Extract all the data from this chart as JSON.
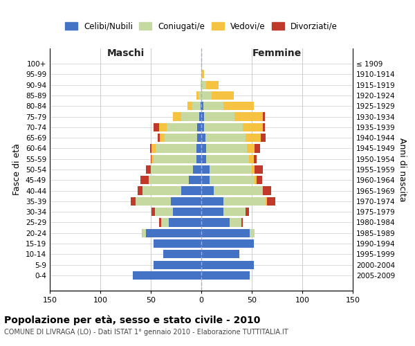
{
  "age_groups": [
    "0-4",
    "5-9",
    "10-14",
    "15-19",
    "20-24",
    "25-29",
    "30-34",
    "35-39",
    "40-44",
    "45-49",
    "50-54",
    "55-59",
    "60-64",
    "65-69",
    "70-74",
    "75-79",
    "80-84",
    "85-89",
    "90-94",
    "95-99",
    "100+"
  ],
  "birth_years": [
    "2005-2009",
    "2000-2004",
    "1995-1999",
    "1990-1994",
    "1985-1989",
    "1980-1984",
    "1975-1979",
    "1970-1974",
    "1965-1969",
    "1960-1964",
    "1955-1959",
    "1950-1954",
    "1945-1949",
    "1940-1944",
    "1935-1939",
    "1930-1934",
    "1925-1929",
    "1920-1924",
    "1915-1919",
    "1910-1914",
    "≤ 1909"
  ],
  "male": {
    "celibi": [
      68,
      47,
      38,
      47,
      55,
      32,
      28,
      30,
      20,
      12,
      8,
      5,
      5,
      4,
      4,
      2,
      1,
      0,
      0,
      0,
      0
    ],
    "coniugati": [
      0,
      0,
      0,
      0,
      3,
      8,
      18,
      35,
      38,
      40,
      42,
      42,
      40,
      32,
      30,
      18,
      8,
      3,
      1,
      0,
      0
    ],
    "vedovi": [
      0,
      0,
      0,
      0,
      1,
      0,
      0,
      0,
      0,
      0,
      0,
      2,
      4,
      5,
      8,
      8,
      5,
      2,
      0,
      0,
      0
    ],
    "divorziati": [
      0,
      0,
      0,
      0,
      0,
      2,
      3,
      5,
      5,
      8,
      5,
      1,
      2,
      2,
      5,
      0,
      0,
      0,
      0,
      0,
      0
    ]
  },
  "female": {
    "nubili": [
      48,
      52,
      38,
      52,
      48,
      28,
      22,
      22,
      12,
      8,
      8,
      5,
      5,
      4,
      3,
      3,
      2,
      0,
      0,
      0,
      0
    ],
    "coniugate": [
      0,
      0,
      0,
      0,
      5,
      12,
      22,
      42,
      48,
      45,
      42,
      42,
      40,
      40,
      38,
      30,
      20,
      10,
      5,
      1,
      0
    ],
    "vedove": [
      0,
      0,
      0,
      0,
      0,
      0,
      0,
      1,
      1,
      2,
      3,
      5,
      8,
      15,
      20,
      28,
      30,
      22,
      12,
      2,
      1
    ],
    "divorziate": [
      0,
      0,
      0,
      0,
      0,
      1,
      3,
      8,
      8,
      5,
      8,
      3,
      5,
      5,
      2,
      2,
      0,
      0,
      0,
      0,
      0
    ]
  },
  "colors": {
    "celibi": "#4472C4",
    "coniugati": "#c5d9a0",
    "vedovi": "#f5c242",
    "divorziati": "#c0392b"
  },
  "xlim": 150,
  "title": "Popolazione per età, sesso e stato civile - 2010",
  "subtitle": "COMUNE DI LIVRAGA (LO) - Dati ISTAT 1° gennaio 2010 - Elaborazione TUTTITALIA.IT",
  "legend_labels": [
    "Celibi/Nubili",
    "Coniugati/e",
    "Vedovi/e",
    "Divorziati/e"
  ],
  "xlabel_left": "Maschi",
  "xlabel_right": "Femmine",
  "ylabel_left": "Fasce di età",
  "ylabel_right": "Anni di nascita",
  "background_color": "#ffffff",
  "grid_color": "#cccccc"
}
